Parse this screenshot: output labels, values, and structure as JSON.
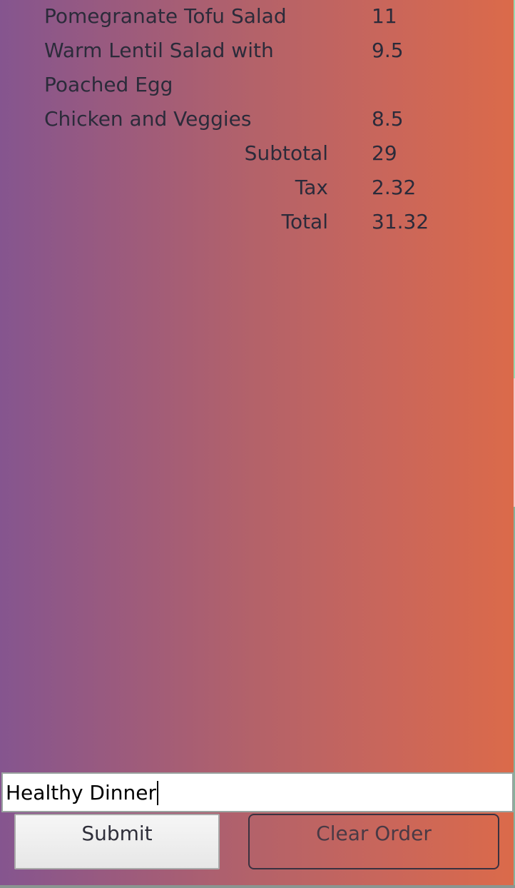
{
  "order": {
    "items": [
      {
        "name": "Pomegranate Tofu Salad",
        "price": "11"
      },
      {
        "name": "Warm Lentil Salad with Poached Egg",
        "price": "9.5"
      },
      {
        "name": "Chicken and Veggies",
        "price": "8.5"
      }
    ],
    "subtotal_label": "Subtotal",
    "subtotal": "29",
    "tax_label": "Tax",
    "tax": "2.32",
    "total_label": "Total",
    "total": "31.32"
  },
  "form": {
    "order_name_value": "Healthy Dinner"
  },
  "buttons": {
    "submit_label": "Submit",
    "clear_label": "Clear Order"
  },
  "colors": {
    "gradient_left": "#85558f",
    "gradient_right": "#db6a4a",
    "text": "#2b2b3a"
  }
}
